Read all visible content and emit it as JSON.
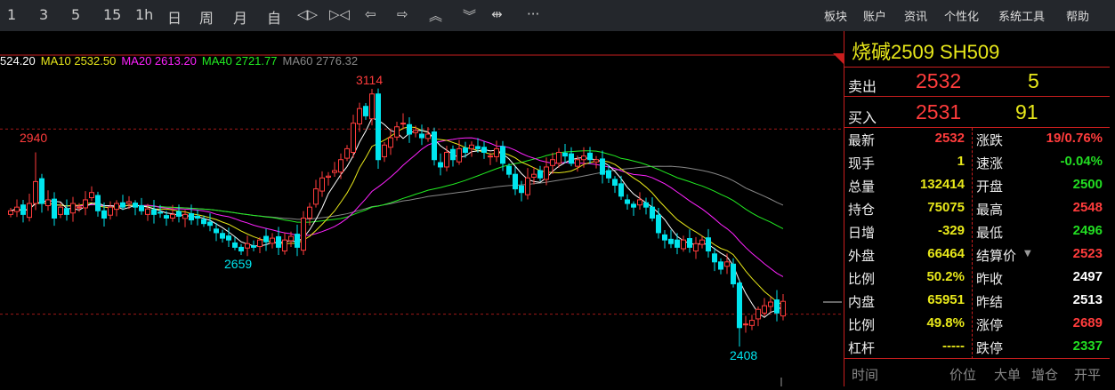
{
  "toolbar": {
    "periods": [
      "1",
      "3",
      "5",
      "15",
      "1h",
      "日",
      "周",
      "月",
      "自"
    ],
    "icons": [
      "zoom-in-icon",
      "zoom-out-icon",
      "arrow-left-icon",
      "arrow-right-icon",
      "chevrons-up-icon",
      "chevrons-down-icon",
      "split-icon",
      "more-icon"
    ],
    "icon_glyphs": [
      "◁▷",
      "▷◁",
      "⇦",
      "⇨",
      "︽",
      "︾",
      "⇹",
      "···"
    ],
    "menu": [
      "板块",
      "账户",
      "资讯",
      "个性化",
      "系统工具",
      "帮助"
    ]
  },
  "ma_legend": [
    {
      "label": "524.20",
      "color": "#ffffff"
    },
    {
      "label": "MA10 2532.50",
      "color": "#e8e81a"
    },
    {
      "label": "MA20 2613.20",
      "color": "#ff22ff"
    },
    {
      "label": "MA40 2721.77",
      "color": "#22ee22"
    },
    {
      "label": "MA60 2776.32",
      "color": "#888888"
    }
  ],
  "chart_data": {
    "type": "candlestick",
    "colors": {
      "up": "#ff3c3c",
      "down": "#00e5ee",
      "ma5": "#ffffff",
      "ma10": "#e8e81a",
      "ma20": "#ff22ff",
      "ma40": "#22ee22",
      "ma60": "#888888"
    },
    "close": [
      2780,
      2790,
      2770,
      2800,
      2860,
      2800,
      2810,
      2760,
      2790,
      2770,
      2800,
      2790,
      2810,
      2830,
      2780,
      2760,
      2790,
      2800,
      2790,
      2805,
      2790,
      2780,
      2785,
      2770,
      2775,
      2760,
      2770,
      2765,
      2770,
      2755,
      2760,
      2745,
      2740,
      2720,
      2705,
      2700,
      2680,
      2670,
      2690,
      2680,
      2700,
      2695,
      2705,
      2680,
      2700,
      2710,
      2680,
      2760,
      2790,
      2840,
      2870,
      2875,
      2890,
      2920,
      2950,
      3020,
      3060,
      3040,
      3100,
      2920,
      2960,
      2980,
      3010,
      3020,
      2990,
      3000,
      2980,
      2990,
      2920,
      2900,
      2940,
      2920,
      2950,
      2940,
      2960,
      2950,
      2940,
      2930,
      2950,
      2910,
      2880,
      2840,
      2830,
      2870,
      2880,
      2870,
      2900,
      2920,
      2940,
      2930,
      2910,
      2920,
      2930,
      2920,
      2920,
      2880,
      2870,
      2850,
      2820,
      2800,
      2790,
      2810,
      2790,
      2760,
      2720,
      2700,
      2690,
      2680,
      2700,
      2680,
      2690,
      2700,
      2670,
      2640,
      2620,
      2640,
      2580,
      2460,
      2470,
      2480,
      2510,
      2520,
      2530,
      2500,
      2532
    ],
    "annotations": [
      {
        "text": "2940",
        "color": "#ff3c3c"
      },
      {
        "text": "3114",
        "color": "#ff3c3c"
      },
      {
        "text": "2659",
        "color": "#00e5ee"
      },
      {
        "text": "2408",
        "color": "#00e5ee"
      }
    ],
    "ref_lines": [
      3004,
      2497
    ]
  },
  "quote": {
    "title": "烧碱2509  SH509",
    "sell_label": "卖出",
    "sell_price": "2532",
    "sell_vol": "5",
    "buy_label": "买入",
    "buy_price": "2531",
    "buy_vol": "91",
    "left": [
      {
        "l": "最新",
        "v": "2532",
        "c": "#ff3c3c"
      },
      {
        "l": "现手",
        "v": "1",
        "c": "#e8e81a"
      },
      {
        "l": "总量",
        "v": "132414",
        "c": "#e8e81a"
      },
      {
        "l": "持仓",
        "v": "75075",
        "c": "#e8e81a"
      },
      {
        "l": "日增",
        "v": "-329",
        "c": "#e8e81a"
      },
      {
        "l": "外盘",
        "v": "66464",
        "c": "#e8e81a"
      },
      {
        "l": "比例",
        "v": "50.2%",
        "c": "#e8e81a"
      },
      {
        "l": "内盘",
        "v": "65951",
        "c": "#e8e81a"
      },
      {
        "l": "比例",
        "v": "49.8%",
        "c": "#e8e81a"
      },
      {
        "l": "杠杆",
        "v": "-----",
        "c": "#e8e81a"
      }
    ],
    "right": [
      {
        "l": "涨跌",
        "v": "19/0.76%",
        "c": "#ff3c3c"
      },
      {
        "l": "速涨",
        "v": "-0.04%",
        "c": "#22dd22"
      },
      {
        "l": "开盘",
        "v": "2500",
        "c": "#22dd22"
      },
      {
        "l": "最高",
        "v": "2548",
        "c": "#ff3c3c"
      },
      {
        "l": "最低",
        "v": "2496",
        "c": "#22dd22"
      },
      {
        "l": "结算价",
        "v": "2523",
        "c": "#ff3c3c"
      },
      {
        "l": "昨收",
        "v": "2497",
        "c": "#ffffff"
      },
      {
        "l": "昨结",
        "v": "2513",
        "c": "#ffffff"
      },
      {
        "l": "涨停",
        "v": "2689",
        "c": "#ff3c3c"
      },
      {
        "l": "跌停",
        "v": "2337",
        "c": "#22dd22"
      }
    ],
    "footer": [
      "时间",
      "价位",
      "大单",
      "增仓",
      "开平"
    ]
  }
}
